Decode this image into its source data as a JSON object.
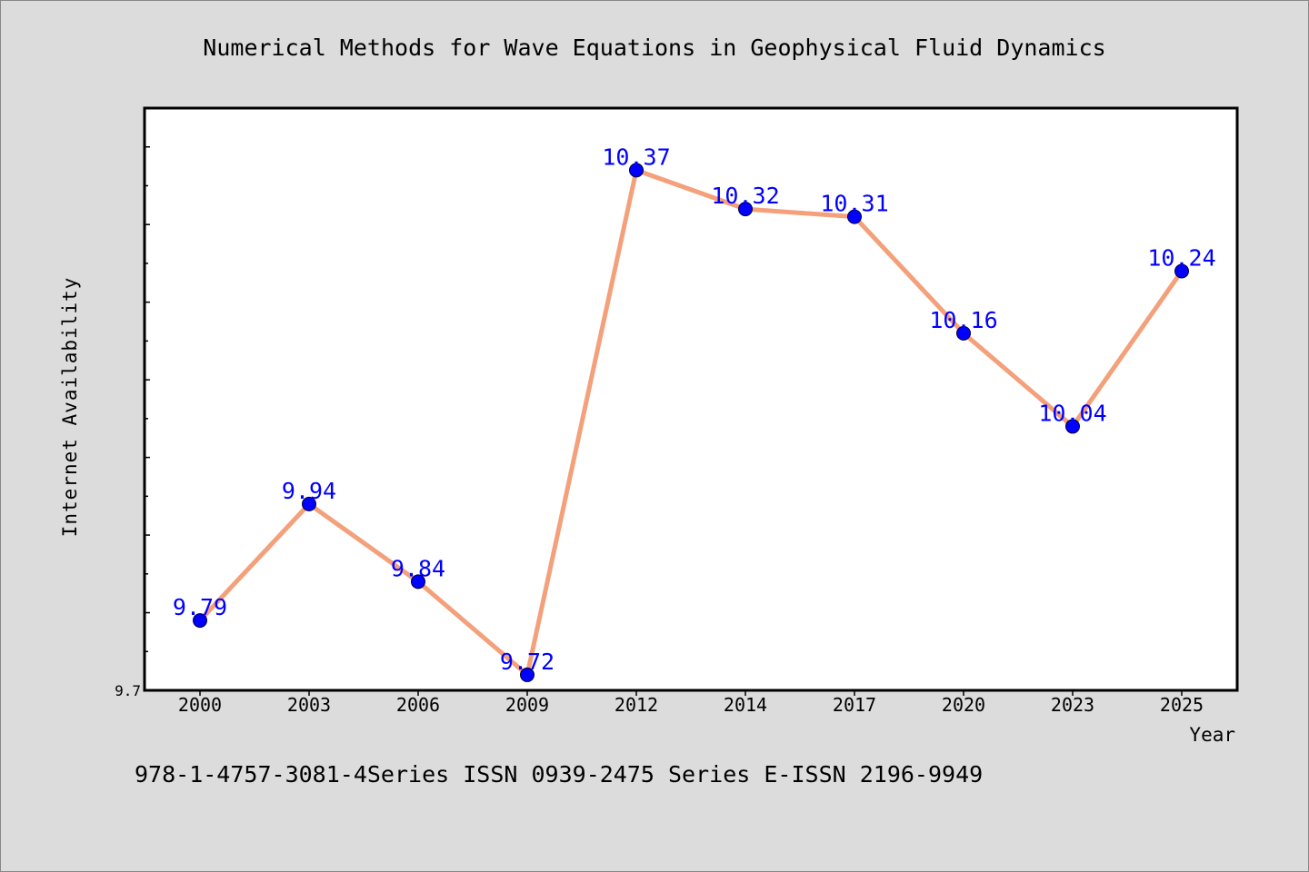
{
  "chart_data": {
    "type": "line",
    "title": "Numerical Methods for Wave Equations in Geophysical Fluid Dynamics",
    "xlabel": "Year",
    "ylabel": "Internet Availability",
    "categories": [
      "2000",
      "2003",
      "2006",
      "2009",
      "2012",
      "2014",
      "2017",
      "2020",
      "2023",
      "2025"
    ],
    "series": [
      {
        "values": [
          9.79,
          9.94,
          9.84,
          9.72,
          10.37,
          10.32,
          10.31,
          10.16,
          10.04,
          10.24
        ],
        "data_labels": [
          "9.79",
          "9.94",
          "9.84",
          "9.72",
          "10.37",
          "10.32",
          "10.31",
          "10.16",
          "10.04",
          "10.24"
        ]
      }
    ],
    "ylim": [
      9.7,
      10.45
    ],
    "ytick_labels": [
      "9.7"
    ],
    "grid": false,
    "colors": {
      "line": "#f4a07a",
      "marker": "#0000ff",
      "data_label": "#0000ff",
      "plot_background": "#ffffff",
      "page_background": "#dcdcdc"
    }
  },
  "footer": {
    "text": "978-1-4757-3081-4Series ISSN 0939-2475 Series E-ISSN 2196-9949"
  }
}
